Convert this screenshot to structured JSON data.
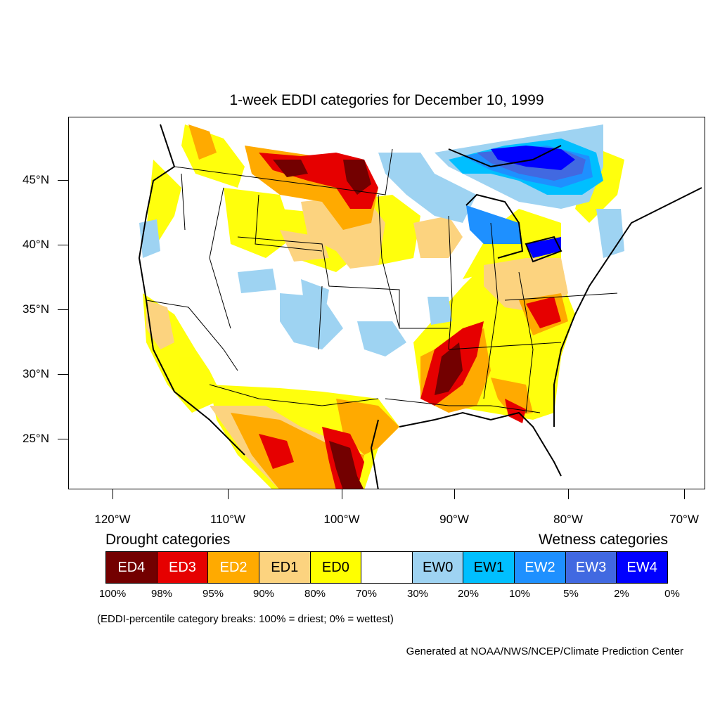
{
  "title": "1-week EDDI categories for December 10, 1999",
  "lat_labels": [
    "45°N",
    "40°N",
    "35°N",
    "30°N",
    "25°N"
  ],
  "lon_labels": [
    "120°W",
    "110°W",
    "100°W",
    "90°W",
    "80°W",
    "70°W"
  ],
  "legend": {
    "drought_heading": "Drought categories",
    "wetness_heading": "Wetness categories",
    "categories": [
      {
        "label": "ED4",
        "color": "#730000",
        "text_color": "#ffffff"
      },
      {
        "label": "ED3",
        "color": "#e60000",
        "text_color": "#ffffff"
      },
      {
        "label": "ED2",
        "color": "#ffaa00",
        "text_color": "#ffffff"
      },
      {
        "label": "ED1",
        "color": "#fcd37f",
        "text_color": "#000000"
      },
      {
        "label": "ED0",
        "color": "#ffff00",
        "text_color": "#000000"
      },
      {
        "label": "",
        "color": "#ffffff",
        "text_color": "#000000"
      },
      {
        "label": "EW0",
        "color": "#9ed3f2",
        "text_color": "#000000"
      },
      {
        "label": "EW1",
        "color": "#00bfff",
        "text_color": "#000000"
      },
      {
        "label": "EW2",
        "color": "#1e90ff",
        "text_color": "#ffffff"
      },
      {
        "label": "EW3",
        "color": "#4169e1",
        "text_color": "#ffffff"
      },
      {
        "label": "EW4",
        "color": "#0000ff",
        "text_color": "#ffffff"
      }
    ],
    "breaks": [
      "100%",
      "98%",
      "95%",
      "90%",
      "80%",
      "70%",
      "30%",
      "20%",
      "10%",
      "5%",
      "2%",
      "0%"
    ]
  },
  "note": "(EDDI-percentile category breaks: 100% = driest; 0% = wettest)",
  "credit": "Generated at NOAA/NWS/NCEP/Climate Prediction Center"
}
